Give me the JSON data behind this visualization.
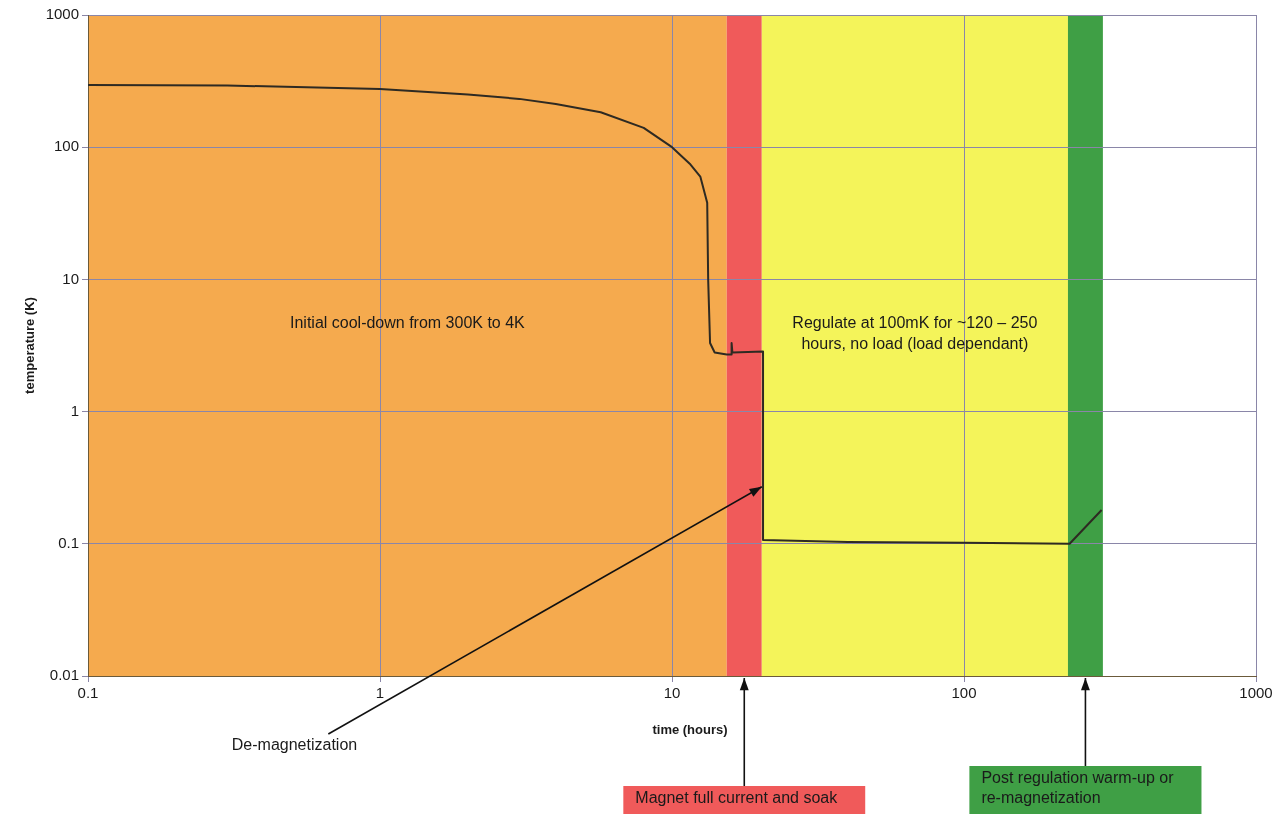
{
  "chart_data": {
    "type": "line",
    "xlabel": "time (hours)",
    "ylabel": "temperature (K)",
    "x": [
      0.1,
      0.3,
      1,
      2,
      3,
      4,
      5.7,
      8,
      10,
      11.5,
      12.5,
      13.2,
      13.3,
      13.5,
      14,
      15.4,
      16,
      16,
      16.1,
      20.5,
      20.5,
      40,
      100,
      230,
      296
    ],
    "series": [
      {
        "color": "#2e2a22",
        "values": [
          295,
          293,
          275,
          250,
          232,
          212,
          184,
          140,
          100,
          75,
          60,
          38,
          10,
          3.3,
          2.8,
          2.7,
          2.7,
          3.3,
          2.8,
          2.85,
          0.107,
          0.103,
          0.102,
          0.1,
          0.18
        ]
      }
    ],
    "xlim": [
      0.1,
      1000
    ],
    "ylim": [
      0.01,
      1000
    ],
    "xticks": [
      0.1,
      1,
      10,
      100,
      1000
    ],
    "yticks": [
      0.01,
      0.1,
      1,
      10,
      100,
      1000
    ],
    "log": "xy",
    "grid": true,
    "legend": false,
    "marker": "none",
    "line_style": "solid",
    "bands": [
      {
        "axis": "x",
        "from": 0.1,
        "to": 15.4,
        "color": "#f5aa4e"
      },
      {
        "axis": "x",
        "from": 15.4,
        "to": 20.3,
        "color": "#f05a5a",
        "label": "Magnet full current and soak"
      },
      {
        "axis": "x",
        "from": 20.3,
        "to": 227,
        "color": "#f4f45a"
      },
      {
        "axis": "x",
        "from": 227,
        "to": 299,
        "color": "#3f9f45",
        "label": "Post regulation warm-up or re-magnetization"
      }
    ],
    "annotations": [
      "Initial cool-down from 300K to 4K",
      "Regulate at 100mK for ~120 – 250 hours, no load (load dependant)",
      {
        "text": "De-magnetization",
        "x": 20.3,
        "y": 0.27
      }
    ]
  }
}
